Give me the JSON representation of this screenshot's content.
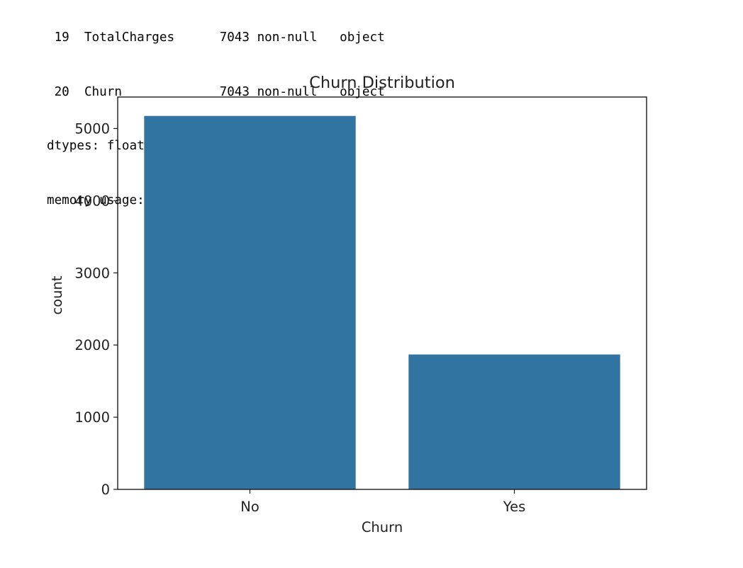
{
  "console_output": {
    "lines": [
      " 19  TotalCharges      7043 non-null   object",
      " 20  Churn             7043 non-null   object",
      "dtypes: float64(1), int64(2), object(18)",
      "memory usage: 1.1+ MB"
    ]
  },
  "chart_data": {
    "type": "bar",
    "title": "Churn Distribution",
    "xlabel": "Churn",
    "ylabel": "count",
    "categories": [
      "No",
      "Yes"
    ],
    "values": [
      5174,
      1869
    ],
    "ylim": [
      0,
      5436
    ],
    "yticks": [
      0,
      1000,
      2000,
      3000,
      4000,
      5000
    ],
    "grid": false,
    "legend": "none",
    "bar_color": "#3274a1"
  }
}
